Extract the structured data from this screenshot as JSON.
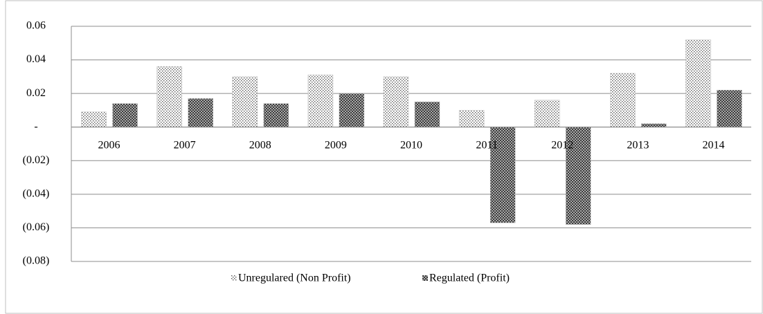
{
  "chart_data": {
    "type": "bar",
    "categories": [
      "2006",
      "2007",
      "2008",
      "2009",
      "2010",
      "2011",
      "2012",
      "2013",
      "2014"
    ],
    "series": [
      {
        "name": "Unregulared (Non Profit)",
        "color": "#555555",
        "pattern": "dots",
        "values": [
          0.009,
          0.036,
          0.03,
          0.031,
          0.03,
          0.01,
          0.016,
          0.032,
          0.052
        ]
      },
      {
        "name": "Regulated (Profit)",
        "color": "#3a3a3a",
        "pattern": "checker",
        "values": [
          0.014,
          0.017,
          0.014,
          0.02,
          0.015,
          -0.057,
          -0.058,
          0.002,
          0.022
        ]
      }
    ],
    "ylim": [
      -0.08,
      0.06
    ],
    "yticks": [
      0.06,
      0.04,
      0.02,
      {
        "value": 0,
        "label": "-"
      },
      {
        "value": -0.02,
        "label": "(0.02)"
      },
      {
        "value": -0.04,
        "label": "(0.04)"
      },
      {
        "value": -0.06,
        "label": "(0.06)"
      },
      {
        "value": -0.08,
        "label": "(0.08)"
      }
    ],
    "grid": true,
    "legend": "bottom"
  }
}
